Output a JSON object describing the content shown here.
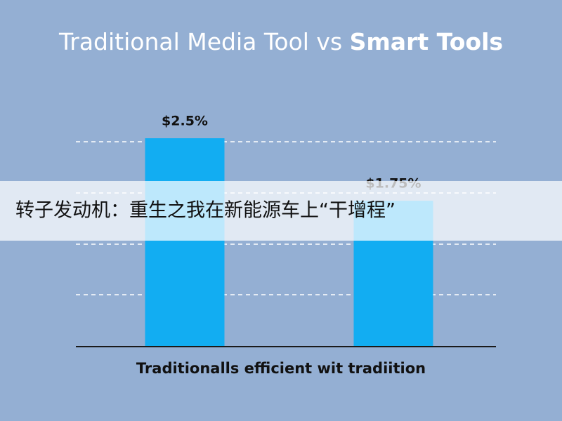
{
  "chart_data": {
    "type": "bar",
    "title_parts": [
      "Traditional Media Tool vs",
      "Smart Tools"
    ],
    "x_label": "Traditionalls efficient wit tradiition",
    "categories": [
      null,
      null
    ],
    "values": [
      2.5,
      1.75
    ],
    "value_labels": [
      "$2.5%",
      "$1.75%"
    ],
    "color": "#12adf2"
  },
  "banner": "转子发动机：重生之我在新能源车上“干增程”"
}
